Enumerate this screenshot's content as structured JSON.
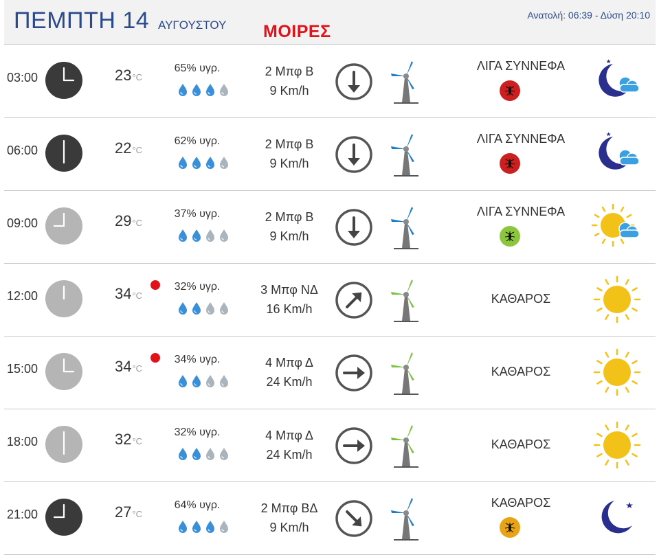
{
  "header": {
    "day": "ΠΕΜΠΤΗ 14",
    "month": "ΑΥΓΟΥΣΤΟΥ",
    "location": "ΜΟΙΡΕΣ",
    "sun_info": "Ανατολή: 06:39  - Δύση 20:10"
  },
  "rows": [
    {
      "time": "03:00",
      "temp": "23",
      "unit": "°C",
      "humidity": "65% υγρ.",
      "drops_filled": 3,
      "wind_force": "2 Μπφ Β",
      "wind_speed": "9 Km/h",
      "direction": "down-arrow",
      "turbine": "blue",
      "condition": "ΛΙΓΑ ΣΥΝΝΕΦΑ",
      "mosquito": "red",
      "weather_icon": "moon-cloud-icon",
      "night": true,
      "warning": false
    },
    {
      "time": "06:00",
      "temp": "22",
      "unit": "°C",
      "humidity": "62% υγρ.",
      "drops_filled": 3,
      "wind_force": "2 Μπφ Β",
      "wind_speed": "9 Km/h",
      "direction": "down-arrow",
      "turbine": "blue",
      "condition": "ΛΙΓΑ ΣΥΝΝΕΦΑ",
      "mosquito": "red",
      "weather_icon": "moon-cloud-icon",
      "night": true,
      "warning": false
    },
    {
      "time": "09:00",
      "temp": "29",
      "unit": "°C",
      "humidity": "37% υγρ.",
      "drops_filled": 2,
      "wind_force": "2 Μπφ Β",
      "wind_speed": "9 Km/h",
      "direction": "down-arrow",
      "turbine": "blue",
      "condition": "ΛΙΓΑ ΣΥΝΝΕΦΑ",
      "mosquito": "green",
      "weather_icon": "sun-cloud-icon",
      "night": false,
      "warning": false
    },
    {
      "time": "12:00",
      "temp": "34",
      "unit": "°C",
      "humidity": "32% υγρ.",
      "drops_filled": 2,
      "wind_force": "3 Μπφ ΝΔ",
      "wind_speed": "16 Km/h",
      "direction": "up-right-arrow",
      "turbine": "green",
      "condition": "ΚΑΘΑΡΟΣ",
      "mosquito": "",
      "weather_icon": "sun-icon",
      "night": false,
      "warning": true
    },
    {
      "time": "15:00",
      "temp": "34",
      "unit": "°C",
      "humidity": "34% υγρ.",
      "drops_filled": 2,
      "wind_force": "4 Μπφ Δ",
      "wind_speed": "24 Km/h",
      "direction": "right-arrow",
      "turbine": "green",
      "condition": "ΚΑΘΑΡΟΣ",
      "mosquito": "",
      "weather_icon": "sun-icon",
      "night": false,
      "warning": true
    },
    {
      "time": "18:00",
      "temp": "32",
      "unit": "°C",
      "humidity": "32% υγρ.",
      "drops_filled": 2,
      "wind_force": "4 Μπφ Δ",
      "wind_speed": "24 Km/h",
      "direction": "right-arrow",
      "turbine": "green",
      "condition": "ΚΑΘΑΡΟΣ",
      "mosquito": "",
      "weather_icon": "sun-icon",
      "night": false,
      "warning": false
    },
    {
      "time": "21:00",
      "temp": "27",
      "unit": "°C",
      "humidity": "64% υγρ.",
      "drops_filled": 3,
      "wind_force": "2 Μπφ ΒΔ",
      "wind_speed": "9 Km/h",
      "direction": "down-right-arrow",
      "turbine": "blue",
      "condition": "ΚΑΘΑΡΟΣ",
      "mosquito": "orange",
      "weather_icon": "moon-icon",
      "night": true,
      "warning": false
    }
  ],
  "colors": {
    "title_blue": "#2b4a8c",
    "location_red": "#e2121b",
    "drop_filled": "#3a8fd6",
    "drop_empty": "#a9b4bd",
    "turbine_blue": "#1e7fc9",
    "turbine_green": "#7cc242",
    "mosquito_red": "#cc1f1f",
    "mosquito_green": "#8cc63f",
    "mosquito_orange": "#e8a317",
    "sun_yellow": "#f2c218",
    "moon_navy": "#2a2e8c",
    "cloud_blue": "#3aa0e0"
  }
}
